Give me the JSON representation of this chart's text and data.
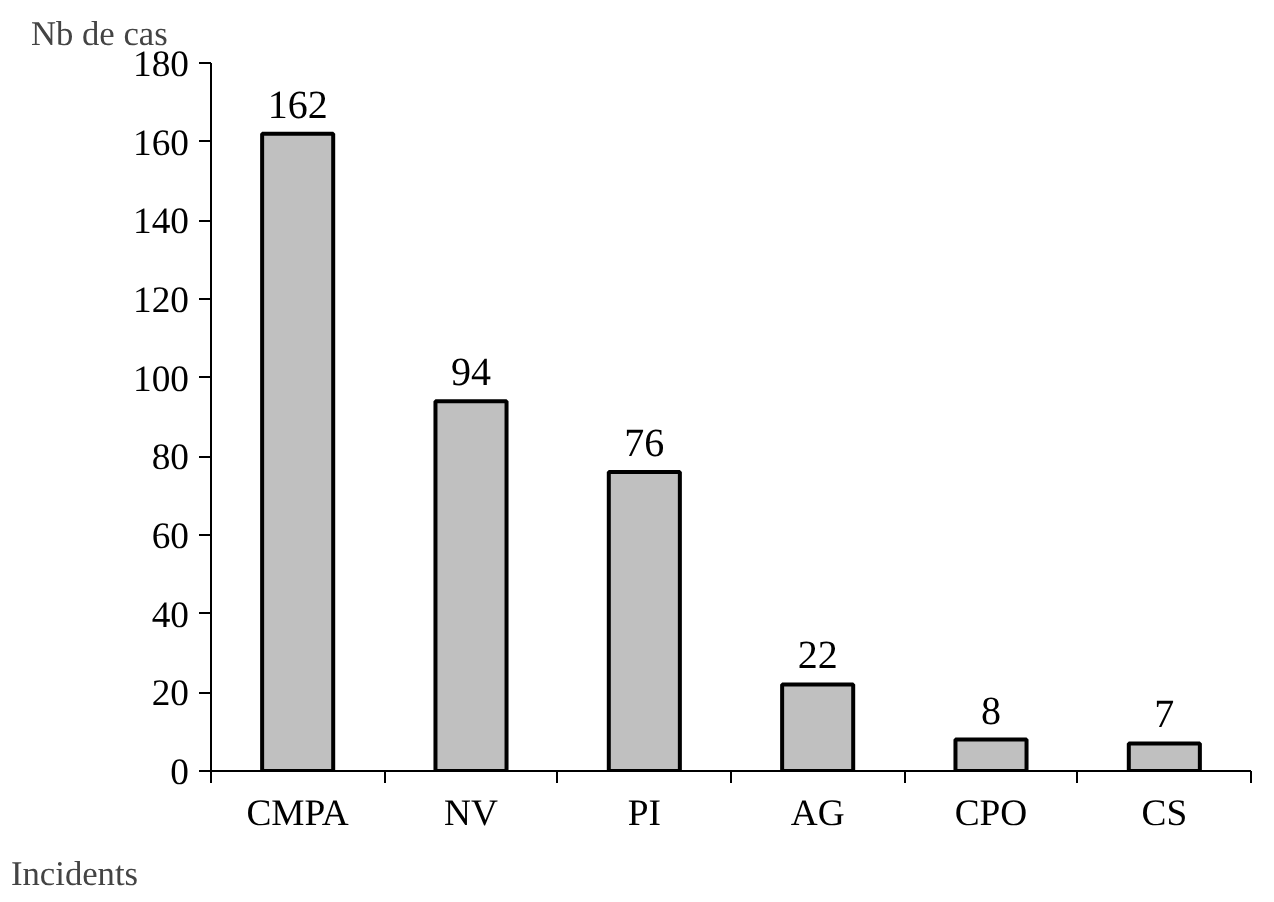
{
  "chart_data": {
    "type": "bar",
    "ylabel": "Nb de cas",
    "xlabel": "Incidents",
    "categories": [
      "CMPA",
      "NV",
      "PI",
      "AG",
      "CPO",
      "CS"
    ],
    "values": [
      162,
      94,
      76,
      22,
      8,
      7
    ],
    "color": "#c0c0c0",
    "ylim": [
      0,
      180
    ],
    "yticks": [
      0,
      20,
      40,
      60,
      80,
      100,
      120,
      140,
      160,
      180
    ],
    "data_labels": true,
    "grid": false
  }
}
